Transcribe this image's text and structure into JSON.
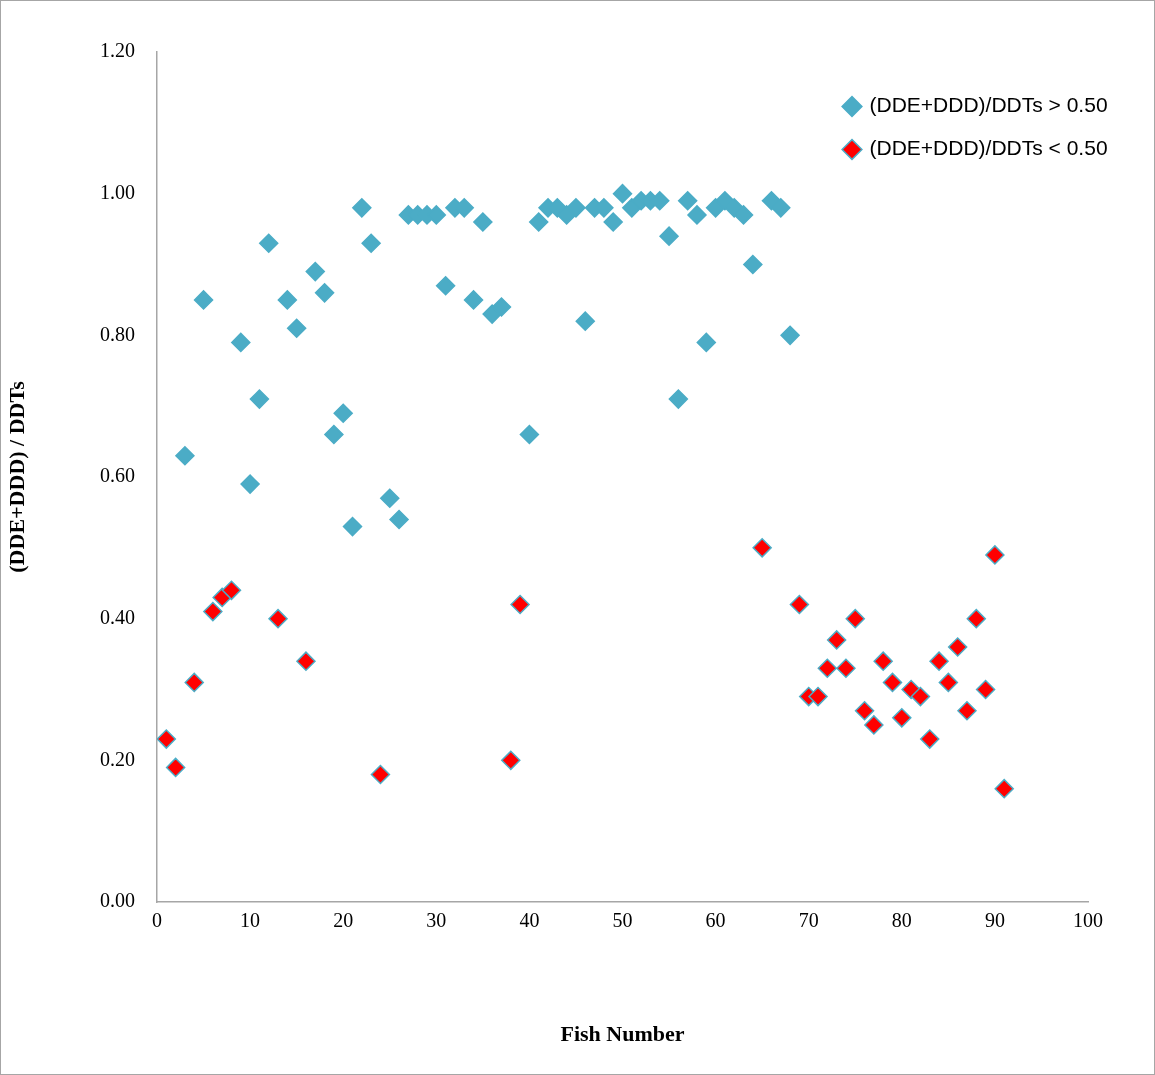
{
  "chart_data": {
    "type": "scatter",
    "xlabel": "Fish Number",
    "ylabel": "(DDE+DDD) / DDTs",
    "xlim": [
      0,
      100
    ],
    "xticks": [
      0,
      10,
      20,
      30,
      40,
      50,
      60,
      70,
      80,
      90,
      100
    ],
    "ylim": [
      0,
      1.2
    ],
    "yticks": [
      {
        "value": 0,
        "label": "0.00"
      },
      {
        "value": 0.2,
        "label": "0.20"
      },
      {
        "value": 0.4,
        "label": "0.40"
      },
      {
        "value": 0.6,
        "label": "0.60"
      },
      {
        "value": 0.8,
        "label": "0.80"
      },
      {
        "value": 1,
        "label": "1.00"
      },
      {
        "value": 1.2,
        "label": "1.20"
      }
    ],
    "grid": false,
    "legend": "top right",
    "marker": "diamond",
    "series": [
      {
        "name": "(DDE+DDD)/DDTs > 0.50",
        "color": "#4bacc6",
        "x": [
          3,
          5,
          9,
          10,
          11,
          12,
          14,
          15,
          17,
          18,
          19,
          20,
          21,
          22,
          23,
          25,
          26,
          27,
          28,
          29,
          30,
          31,
          32,
          33,
          34,
          35,
          36,
          37,
          40,
          41,
          42,
          43,
          44,
          45,
          46,
          47,
          48,
          49,
          50,
          51,
          52,
          53,
          54,
          55,
          56,
          57,
          58,
          59,
          60,
          61,
          62,
          63,
          64,
          66,
          67,
          68
        ],
        "values": [
          0.63,
          0.85,
          0.79,
          0.59,
          0.71,
          0.93,
          0.85,
          0.81,
          0.89,
          0.86,
          0.66,
          0.69,
          0.53,
          0.98,
          0.93,
          0.57,
          0.54,
          0.97,
          0.97,
          0.97,
          0.97,
          0.87,
          0.98,
          0.98,
          0.85,
          0.96,
          0.83,
          0.84,
          0.66,
          0.96,
          0.98,
          0.98,
          0.97,
          0.98,
          0.82,
          0.98,
          0.98,
          0.96,
          1.0,
          0.98,
          0.99,
          0.99,
          0.99,
          0.94,
          0.71,
          0.99,
          0.97,
          0.79,
          0.98,
          0.99,
          0.98,
          0.97,
          0.9,
          0.99,
          0.98,
          0.8
        ]
      },
      {
        "name": "(DDE+DDD)/DDTs < 0.50",
        "color": "#ff0000",
        "x": [
          1,
          2,
          4,
          6,
          7,
          8,
          13,
          16,
          24,
          38,
          39,
          65,
          69,
          70,
          71,
          72,
          73,
          74,
          75,
          76,
          77,
          78,
          79,
          80,
          81,
          82,
          83,
          84,
          85,
          86,
          87,
          88,
          89,
          90,
          91
        ],
        "values": [
          0.23,
          0.19,
          0.31,
          0.41,
          0.43,
          0.44,
          0.4,
          0.34,
          0.18,
          0.2,
          0.42,
          0.5,
          0.42,
          0.29,
          0.29,
          0.33,
          0.37,
          0.33,
          0.4,
          0.27,
          0.25,
          0.34,
          0.31,
          0.26,
          0.3,
          0.29,
          0.23,
          0.34,
          0.31,
          0.36,
          0.27,
          0.4,
          0.3,
          0.49,
          0.16
        ]
      }
    ]
  }
}
